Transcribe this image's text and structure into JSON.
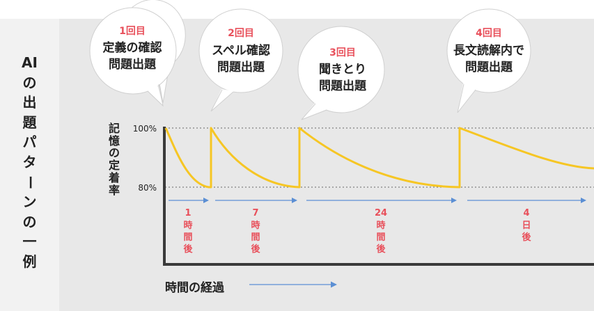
{
  "side_title": "AIの出題パターンの一例",
  "y_axis_label": "記憶の定着率",
  "x_axis_label": "時間の経過",
  "ticks": [
    {
      "label": "100%",
      "value": 100
    },
    {
      "label": "80%",
      "value": 80
    }
  ],
  "bubbles": [
    {
      "number": "1回目",
      "lines": [
        "定義の確認",
        "問題出題"
      ]
    },
    {
      "number": "2回目",
      "lines": [
        "スペル確認",
        "問題出題"
      ]
    },
    {
      "number": "3回目",
      "lines": [
        "聞きとり",
        "問題出題"
      ]
    },
    {
      "number": "4回目",
      "lines": [
        "長文読解内で",
        "問題出題"
      ]
    }
  ],
  "intervals": [
    {
      "chars": [
        "1",
        "時",
        "間",
        "後"
      ]
    },
    {
      "chars": [
        "7",
        "時",
        "間",
        "後"
      ]
    },
    {
      "chars": [
        "24",
        "時",
        "間",
        "後"
      ]
    },
    {
      "chars": [
        "4",
        "日",
        "後"
      ]
    }
  ],
  "colors": {
    "curve": "#f6c624",
    "accent_red": "#e8505b",
    "arrow_blue": "#5b8fd4",
    "axis": "#3a3a3a"
  }
}
